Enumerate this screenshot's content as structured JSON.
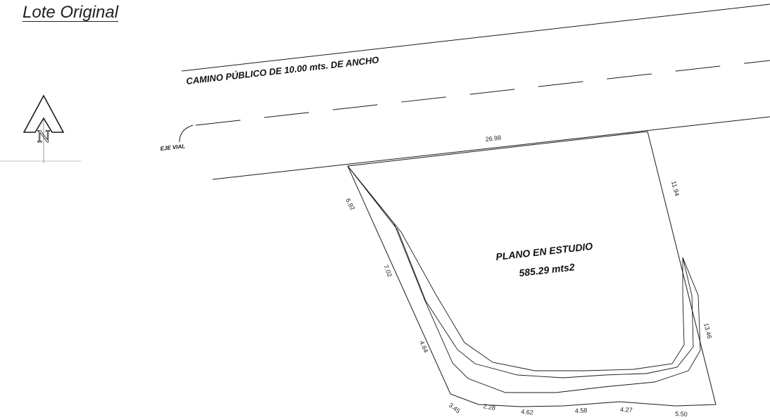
{
  "title": "Lote Original",
  "north": {
    "letter": "N",
    "icon": "north-arrow-icon"
  },
  "road": {
    "label": "CAMINO PÚBLICO DE 10.00 mts. DE ANCHO",
    "axis_label": "EJE VIAL"
  },
  "lot": {
    "name": "PLANO EN ESTUDIO",
    "area": "585.29 mts2",
    "dimensions": {
      "front": "26.98",
      "right_upper": "11.94",
      "right_lower": "13.46",
      "left_1": "6.92",
      "left_2": "7.02",
      "left_3": "4.64",
      "bottom_1": "3.45",
      "bottom_2": "2.28",
      "bottom_3": "4.62",
      "bottom_4": "4.58",
      "bottom_5": "4.27",
      "bottom_6": "5.50"
    }
  },
  "colors": {
    "line": "#1a1a1a",
    "background": "#ffffff"
  }
}
